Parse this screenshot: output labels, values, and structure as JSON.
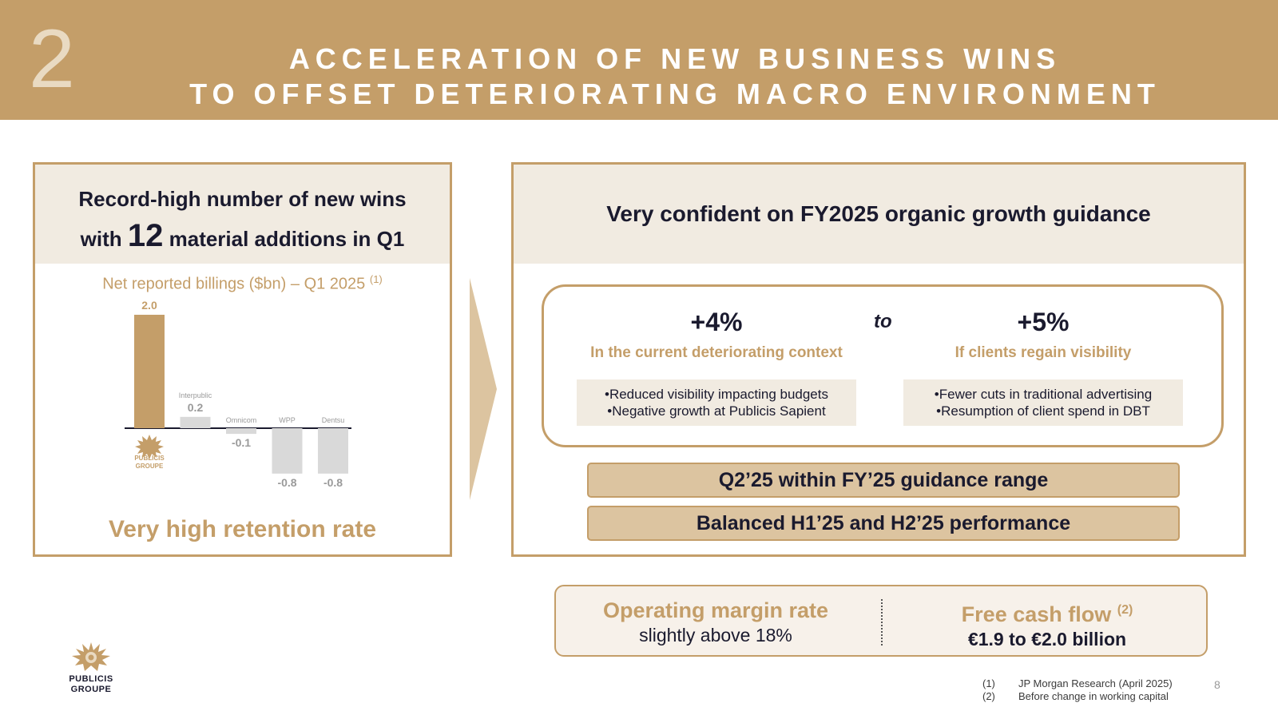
{
  "header": {
    "section_number": "2",
    "title_line1": "ACCELERATION OF NEW BUSINESS WINS",
    "title_line2": "TO OFFSET DETERIORATING MACRO ENVIRONMENT"
  },
  "left_panel": {
    "headline_line1": "Record-high number of new wins",
    "headline_pre": "with",
    "headline_big": "12",
    "headline_post": "material additions in Q1",
    "chart_title": "Net reported billings ($bn) – Q1 2025",
    "chart_title_ref": "(1)",
    "retention": "Very high retention rate"
  },
  "chart_data": {
    "type": "bar",
    "title": "Net reported billings ($bn) – Q1 2025",
    "categories": [
      "PUBLICIS GROUPE",
      "Interpublic",
      "Omnicom",
      "WPP",
      "Dentsu"
    ],
    "values": [
      2.0,
      0.2,
      -0.1,
      -0.8,
      -0.8
    ],
    "value_labels": [
      "2.0",
      "0.2",
      "-0.1",
      "-0.8",
      "-0.8"
    ],
    "colors": [
      "#c49e69",
      "#d9d9d9",
      "#d9d9d9",
      "#d9d9d9",
      "#d9d9d9"
    ],
    "ylim": [
      -0.8,
      2.0
    ]
  },
  "right_panel": {
    "headline": "Very confident on FY2025 organic growth guidance",
    "low": {
      "pct": "+4%",
      "context": "In the current deteriorating context",
      "bullets": [
        "Reduced visibility impacting budgets",
        "Negative growth at Publicis Sapient"
      ]
    },
    "connector": "to",
    "high": {
      "pct": "+5%",
      "context": "If clients regain visibility",
      "bullets": [
        "Fewer cuts in traditional advertising",
        "Resumption of client spend in DBT"
      ]
    },
    "pill_1": "Q2’25 within FY’25 guidance range",
    "pill_2": "Balanced H1’25 and H2’25 performance"
  },
  "kpis": {
    "margin_title": "Operating margin rate",
    "margin_value": "slightly above 18%",
    "fcf_title": "Free cash flow",
    "fcf_ref": "(2)",
    "fcf_value": "€1.9 to €2.0 billion"
  },
  "logo": {
    "line1": "PUBLICIS",
    "line2": "GROUPE",
    "icon": "lion-sun-icon"
  },
  "footnotes": [
    {
      "num": "(1)",
      "text": "JP Morgan Research (April 2025)"
    },
    {
      "num": "(2)",
      "text": "Before change in working capital"
    }
  ],
  "page_number": "8",
  "colors": {
    "gold": "#c49e69",
    "beige": "#f1ebe1",
    "pill": "#dcc4a0",
    "grey_bar": "#d9d9d9",
    "navy": "#1a1a2e"
  }
}
